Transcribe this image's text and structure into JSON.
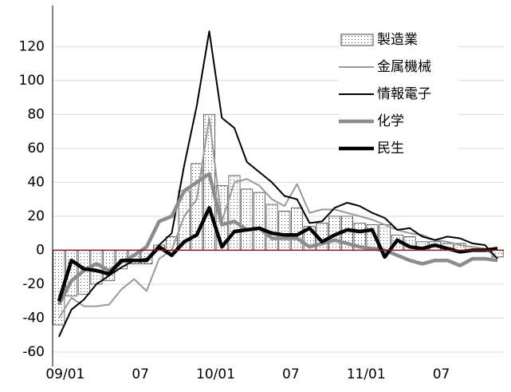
{
  "chart_data": {
    "type": "combo",
    "categories": [
      "09/01",
      null,
      null,
      null,
      null,
      null,
      "07",
      null,
      null,
      null,
      null,
      null,
      "10/01",
      null,
      null,
      null,
      null,
      null,
      "07",
      null,
      null,
      null,
      null,
      null,
      "11/01",
      null,
      null,
      null,
      null,
      null,
      "07",
      null,
      null,
      null,
      null,
      null
    ],
    "ylim": [
      -60,
      130
    ],
    "yticks": [
      -60,
      -40,
      -20,
      0,
      20,
      40,
      60,
      80,
      100,
      120
    ],
    "grid": true,
    "zero_line_color": "#c00000",
    "legend": "top-right",
    "series": [
      {
        "name": "製造業",
        "type": "bar",
        "color": "#555555",
        "values": [
          -44,
          -27,
          -26,
          -20,
          -18,
          -11,
          -8,
          -8,
          3,
          8,
          35,
          51,
          80,
          38,
          44,
          36,
          34,
          27,
          23,
          25,
          14,
          16,
          20,
          20,
          16,
          15,
          15,
          9,
          8,
          5,
          5,
          4,
          4,
          0,
          0,
          -4
        ]
      },
      {
        "name": "金属機械",
        "type": "line",
        "color": "#999999",
        "width": 2,
        "values": [
          -40,
          -28,
          -33,
          -33,
          -32,
          -23,
          -17,
          -24,
          -5,
          0,
          20,
          30,
          78,
          17,
          40,
          42,
          38,
          30,
          26,
          39,
          22,
          24,
          24,
          22,
          20,
          18,
          15,
          12,
          10,
          9,
          6,
          5,
          3,
          2,
          1,
          -5
        ]
      },
      {
        "name": "情報電子",
        "type": "line",
        "color": "#000000",
        "width": 2,
        "values": [
          -51,
          -35,
          -29,
          -20,
          -15,
          -10,
          -6,
          -5,
          3,
          10,
          50,
          85,
          129,
          78,
          72,
          52,
          46,
          40,
          32,
          30,
          16,
          17,
          25,
          28,
          26,
          22,
          19,
          12,
          13,
          8,
          6,
          8,
          7,
          4,
          3,
          -5
        ]
      },
      {
        "name": "化学",
        "type": "line",
        "color": "#8c8c8c",
        "width": 4.5,
        "values": [
          -32,
          -18,
          -12,
          -8,
          -12,
          -7,
          -3,
          2,
          17,
          20,
          35,
          40,
          45,
          15,
          17,
          12,
          13,
          7,
          7,
          7,
          2,
          4,
          6,
          4,
          2,
          1,
          0,
          -3,
          -6,
          -8,
          -6,
          -6,
          -9,
          -5,
          -5,
          -6
        ]
      },
      {
        "name": "民生",
        "type": "line",
        "color": "#000000",
        "width": 4.5,
        "values": [
          -30,
          -6,
          -11,
          -12,
          -14,
          -6,
          -6,
          -6,
          2,
          -3,
          5,
          9,
          25,
          2,
          11,
          12,
          13,
          10,
          9,
          9,
          13,
          5,
          9,
          12,
          11,
          12,
          -4,
          6,
          2,
          1,
          3,
          1,
          -1,
          0,
          0,
          1
        ]
      }
    ]
  }
}
